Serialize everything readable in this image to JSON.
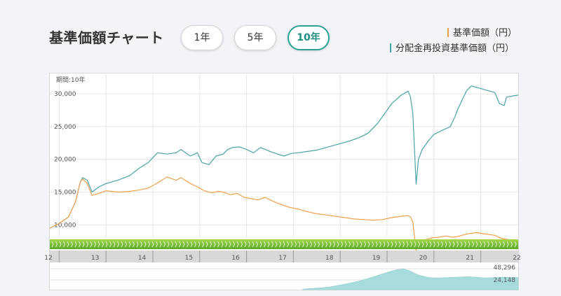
{
  "header": {
    "title": "基準価額チャート",
    "periods": [
      {
        "label": "1年",
        "active": false
      },
      {
        "label": "5年",
        "active": false
      },
      {
        "label": "10年",
        "active": true
      }
    ]
  },
  "legend": [
    {
      "label": "基準価額（円）",
      "color": "#f0a04b"
    },
    {
      "label": "分配金再投資基準価額（円）",
      "color": "#4aa3a8"
    }
  ],
  "chart_data": {
    "type": "line",
    "period_label": "期間:10年",
    "ylim": [
      8000,
      33000
    ],
    "y_ticks": [
      {
        "label": "30,000",
        "value": 30000
      },
      {
        "label": "25,000",
        "value": 25000
      },
      {
        "label": "20,000",
        "value": 20000
      },
      {
        "label": "15,000",
        "value": 15000
      },
      {
        "label": "10,000",
        "value": 10000
      }
    ],
    "x_range": [
      2012.3,
      2022.3
    ],
    "year_ticks": [
      {
        "label": "12",
        "value": 2012
      },
      {
        "label": "13",
        "value": 2013
      },
      {
        "label": "14",
        "value": 2014
      },
      {
        "label": "15",
        "value": 2015
      },
      {
        "label": "16",
        "value": 2016
      },
      {
        "label": "17",
        "value": 2017
      },
      {
        "label": "18",
        "value": 2018
      },
      {
        "label": "19",
        "value": 2019
      },
      {
        "label": "20",
        "value": 2020
      },
      {
        "label": "21",
        "value": 2021
      },
      {
        "label": "22",
        "value": 2022
      }
    ],
    "series": [
      {
        "name": "分配金再投資基準価額（円）",
        "color": "#4aa3a8",
        "points": [
          [
            2012.3,
            9500
          ],
          [
            2012.5,
            10200
          ],
          [
            2012.7,
            11200
          ],
          [
            2012.85,
            13500
          ],
          [
            2012.95,
            16500
          ],
          [
            2013.0,
            17200
          ],
          [
            2013.1,
            16800
          ],
          [
            2013.2,
            15000
          ],
          [
            2013.35,
            15800
          ],
          [
            2013.5,
            16300
          ],
          [
            2013.75,
            16800
          ],
          [
            2014.0,
            17500
          ],
          [
            2014.2,
            18600
          ],
          [
            2014.4,
            19500
          ],
          [
            2014.6,
            21000
          ],
          [
            2014.8,
            20800
          ],
          [
            2015.0,
            21000
          ],
          [
            2015.1,
            21500
          ],
          [
            2015.3,
            20500
          ],
          [
            2015.45,
            21000
          ],
          [
            2015.55,
            19500
          ],
          [
            2015.7,
            19200
          ],
          [
            2015.85,
            20500
          ],
          [
            2016.0,
            20800
          ],
          [
            2016.1,
            21500
          ],
          [
            2016.2,
            21800
          ],
          [
            2016.35,
            21900
          ],
          [
            2016.5,
            21500
          ],
          [
            2016.65,
            21000
          ],
          [
            2016.8,
            21800
          ],
          [
            2017.0,
            21200
          ],
          [
            2017.2,
            20700
          ],
          [
            2017.3,
            20500
          ],
          [
            2017.45,
            20900
          ],
          [
            2017.6,
            21000
          ],
          [
            2017.8,
            21200
          ],
          [
            2018.0,
            21400
          ],
          [
            2018.2,
            21800
          ],
          [
            2018.4,
            22200
          ],
          [
            2018.55,
            22500
          ],
          [
            2018.7,
            22800
          ],
          [
            2018.9,
            23300
          ],
          [
            2019.1,
            24000
          ],
          [
            2019.3,
            25500
          ],
          [
            2019.45,
            27000
          ],
          [
            2019.6,
            28500
          ],
          [
            2019.8,
            29800
          ],
          [
            2019.95,
            30400
          ],
          [
            2020.0,
            29500
          ],
          [
            2020.05,
            27000
          ],
          [
            2020.12,
            16200
          ],
          [
            2020.17,
            20000
          ],
          [
            2020.25,
            21500
          ],
          [
            2020.4,
            23000
          ],
          [
            2020.5,
            23800
          ],
          [
            2020.7,
            24500
          ],
          [
            2020.85,
            25000
          ],
          [
            2020.95,
            26500
          ],
          [
            2021.0,
            27500
          ],
          [
            2021.1,
            29000
          ],
          [
            2021.2,
            30500
          ],
          [
            2021.3,
            31200
          ],
          [
            2021.5,
            30800
          ],
          [
            2021.65,
            30500
          ],
          [
            2021.8,
            30200
          ],
          [
            2021.9,
            28500
          ],
          [
            2022.0,
            28200
          ],
          [
            2022.05,
            29500
          ],
          [
            2022.2,
            29700
          ],
          [
            2022.3,
            29800
          ]
        ]
      },
      {
        "name": "基準価額（円）",
        "color": "#f0a04b",
        "points": [
          [
            2012.3,
            9500
          ],
          [
            2012.5,
            10200
          ],
          [
            2012.7,
            11200
          ],
          [
            2012.85,
            13500
          ],
          [
            2012.95,
            16500
          ],
          [
            2013.0,
            17000
          ],
          [
            2013.1,
            16300
          ],
          [
            2013.2,
            14500
          ],
          [
            2013.35,
            14800
          ],
          [
            2013.5,
            15200
          ],
          [
            2013.75,
            15000
          ],
          [
            2014.0,
            15100
          ],
          [
            2014.2,
            15300
          ],
          [
            2014.4,
            15600
          ],
          [
            2014.6,
            16400
          ],
          [
            2014.8,
            17300
          ],
          [
            2015.0,
            16800
          ],
          [
            2015.1,
            17200
          ],
          [
            2015.3,
            16300
          ],
          [
            2015.45,
            15800
          ],
          [
            2015.6,
            15200
          ],
          [
            2015.75,
            14900
          ],
          [
            2015.9,
            15100
          ],
          [
            2016.0,
            15000
          ],
          [
            2016.15,
            14600
          ],
          [
            2016.3,
            14800
          ],
          [
            2016.45,
            14200
          ],
          [
            2016.6,
            14000
          ],
          [
            2016.75,
            13800
          ],
          [
            2016.9,
            14200
          ],
          [
            2017.0,
            13800
          ],
          [
            2017.2,
            13200
          ],
          [
            2017.4,
            12700
          ],
          [
            2017.6,
            12400
          ],
          [
            2017.8,
            12000
          ],
          [
            2018.0,
            11700
          ],
          [
            2018.2,
            11500
          ],
          [
            2018.4,
            11300
          ],
          [
            2018.6,
            11100
          ],
          [
            2018.8,
            10900
          ],
          [
            2019.0,
            10800
          ],
          [
            2019.2,
            10700
          ],
          [
            2019.4,
            10800
          ],
          [
            2019.6,
            11100
          ],
          [
            2019.8,
            11300
          ],
          [
            2019.95,
            11400
          ],
          [
            2020.0,
            11200
          ],
          [
            2020.05,
            10400
          ],
          [
            2020.12,
            6100
          ],
          [
            2020.17,
            7300
          ],
          [
            2020.3,
            7700
          ],
          [
            2020.45,
            8000
          ],
          [
            2020.6,
            8100
          ],
          [
            2020.75,
            8300
          ],
          [
            2020.9,
            8100
          ],
          [
            2021.0,
            8200
          ],
          [
            2021.2,
            8600
          ],
          [
            2021.4,
            8800
          ],
          [
            2021.6,
            8600
          ],
          [
            2021.8,
            8400
          ],
          [
            2021.95,
            7900
          ],
          [
            2022.05,
            7800
          ],
          [
            2022.2,
            7600
          ],
          [
            2022.3,
            7700
          ]
        ]
      }
    ],
    "volume": {
      "max_label": "48,296",
      "mid_label": "24,148",
      "max_value": 48296,
      "points": [
        [
          2017.7,
          1500
        ],
        [
          2017.9,
          3000
        ],
        [
          2018.1,
          4500
        ],
        [
          2018.3,
          7000
        ],
        [
          2018.5,
          11000
        ],
        [
          2018.7,
          15000
        ],
        [
          2018.9,
          20000
        ],
        [
          2019.1,
          26000
        ],
        [
          2019.3,
          33000
        ],
        [
          2019.5,
          40000
        ],
        [
          2019.7,
          46000
        ],
        [
          2019.85,
          48000
        ],
        [
          2020.0,
          43000
        ],
        [
          2020.1,
          37000
        ],
        [
          2020.2,
          33000
        ],
        [
          2020.4,
          28000
        ],
        [
          2020.6,
          27000
        ],
        [
          2020.8,
          28000
        ],
        [
          2021.0,
          29000
        ],
        [
          2021.2,
          30000
        ],
        [
          2021.4,
          29000
        ],
        [
          2021.6,
          27000
        ],
        [
          2021.8,
          28000
        ],
        [
          2022.0,
          29000
        ],
        [
          2022.2,
          28500
        ],
        [
          2022.3,
          28000
        ]
      ]
    }
  }
}
